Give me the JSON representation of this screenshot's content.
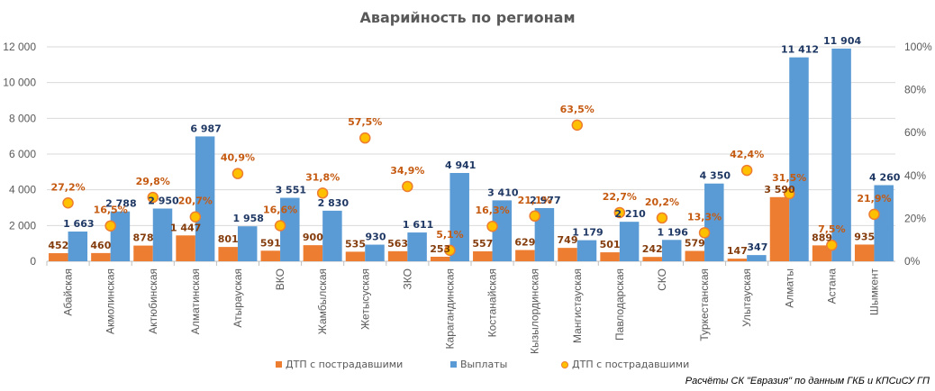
{
  "chart_data": {
    "type": "bar",
    "title": "Аварийность по регионам",
    "categories": [
      "Абайская",
      "Акмолинская",
      "Актюбинская",
      "Алматинская",
      "Атырауская",
      "ВКО",
      "Жамбылская",
      "Жетысуская",
      "ЗКО",
      "Карагандинская",
      "Костанайская",
      "Кызылординская",
      "Мангистауская",
      "Павлодарская",
      "СКО",
      "Туркестанская",
      "Улытауская",
      "Алматы",
      "Астана",
      "Шымкент"
    ],
    "series": [
      {
        "name": "ДТП с пострадавшими",
        "type": "bar",
        "axis": "left",
        "color": "#ED7D31",
        "values": [
          452,
          460,
          878,
          1447,
          801,
          591,
          900,
          535,
          563,
          253,
          557,
          629,
          749,
          501,
          242,
          579,
          147,
          3590,
          889,
          935
        ],
        "labels": [
          "452",
          "460",
          "878",
          "1 447",
          "801",
          "591",
          "900",
          "535",
          "563",
          "253",
          "557",
          "629",
          "749",
          "501",
          "242",
          "579",
          "147",
          "3 590",
          "889",
          "935"
        ]
      },
      {
        "name": "Выплаты",
        "type": "bar",
        "axis": "left",
        "color": "#5B9BD5",
        "values": [
          1663,
          2788,
          2950,
          6987,
          1958,
          3551,
          2830,
          930,
          1611,
          4941,
          3410,
          2977,
          1179,
          2210,
          1196,
          4350,
          347,
          11412,
          11904,
          4260
        ],
        "labels": [
          "1 663",
          "2 788",
          "2 950",
          "6 987",
          "1 958",
          "3 551",
          "2 830",
          "930",
          "1 611",
          "4 941",
          "3 410",
          "2 977",
          "1 179",
          "2 210",
          "1 196",
          "4 350",
          "347",
          "11 412",
          "11 904",
          "4 260"
        ]
      },
      {
        "name": "ДТП с пострадавшими",
        "type": "scatter",
        "axis": "right",
        "color": "#FFC000",
        "border": "#ED7D31",
        "values": [
          27.2,
          16.5,
          29.8,
          20.7,
          40.9,
          16.6,
          31.8,
          57.5,
          34.9,
          5.1,
          16.3,
          21.1,
          63.5,
          22.7,
          20.2,
          13.3,
          42.4,
          31.5,
          7.5,
          21.9
        ],
        "labels": [
          "27,2%",
          "16,5%",
          "29,8%",
          "20,7%",
          "40,9%",
          "16,6%",
          "31,8%",
          "57,5%",
          "34,9%",
          "5,1%",
          "16,3%",
          "21,1%",
          "63,5%",
          "22,7%",
          "20,2%",
          "13,3%",
          "42,4%",
          "31,5%",
          "7,5%",
          "21,9%"
        ]
      }
    ],
    "y_left": {
      "ylim": [
        0,
        12000
      ],
      "ticks": [
        0,
        2000,
        4000,
        6000,
        8000,
        10000,
        12000
      ],
      "tick_labels": [
        "0",
        "2 000",
        "4 000",
        "6 000",
        "8 000",
        "10 000",
        "12 000"
      ]
    },
    "y_right": {
      "ylim": [
        0,
        100
      ],
      "ticks": [
        0,
        20,
        40,
        60,
        80,
        100
      ],
      "tick_labels": [
        "0%",
        "20%",
        "40%",
        "60%",
        "80%",
        "100%"
      ]
    },
    "xlabel": "",
    "ylabel": "",
    "grid": true,
    "legend": {
      "placement": "bottom",
      "entries": [
        "ДТП с пострадавшими",
        "Выплаты",
        "ДТП с пострадавшими"
      ]
    },
    "annotations": [
      "Расчёты СК \"Евразия\" по данным ГКБ и КПСиСУ ГП"
    ]
  },
  "legend": {
    "item0": "ДТП с пострадавшими",
    "item1": "Выплаты",
    "item2": "ДТП с пострадавшими"
  },
  "source_note": "Расчёты СК \"Евразия\" по данным ГКБ и КПСиСУ ГП"
}
